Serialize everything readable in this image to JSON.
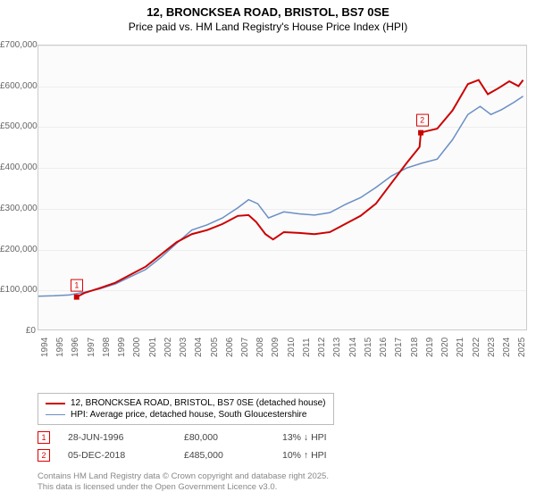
{
  "title_line1": "12, BRONCKSEA ROAD, BRISTOL, BS7 0SE",
  "title_line2": "Price paid vs. HM Land Registry's House Price Index (HPI)",
  "chart": {
    "type": "line",
    "background_color": "#fbfbfb",
    "grid_color": "#eeeeee",
    "border_color": "#cccccc",
    "x": {
      "min": 1994,
      "max": 2025.8,
      "tick_step": 1,
      "labels": [
        "1994",
        "1995",
        "1996",
        "1997",
        "1998",
        "1999",
        "2000",
        "2001",
        "2002",
        "2003",
        "2004",
        "2005",
        "2006",
        "2007",
        "2008",
        "2009",
        "2010",
        "2011",
        "2012",
        "2013",
        "2014",
        "2015",
        "2016",
        "2017",
        "2018",
        "2019",
        "2020",
        "2021",
        "2022",
        "2023",
        "2024",
        "2025"
      ],
      "label_fontsize": 10,
      "label_color": "#666666"
    },
    "y": {
      "min": 0,
      "max": 700000,
      "tick_step": 100000,
      "labels": [
        "£0",
        "£100,000",
        "£200,000",
        "£300,000",
        "£400,000",
        "£500,000",
        "£600,000",
        "£700,000"
      ],
      "label_fontsize": 10,
      "label_color": "#666666"
    },
    "series": [
      {
        "name": "price_paid",
        "label": "12, BRONCKSEA ROAD, BRISTOL, BS7 0SE (detached house)",
        "color": "#cc0000",
        "line_width": 2,
        "points": [
          [
            1996.49,
            80000
          ],
          [
            1997,
            90000
          ],
          [
            1998,
            102000
          ],
          [
            1999,
            115000
          ],
          [
            2000,
            135000
          ],
          [
            2001,
            155000
          ],
          [
            2002,
            185000
          ],
          [
            2003,
            215000
          ],
          [
            2004,
            235000
          ],
          [
            2005,
            245000
          ],
          [
            2006,
            260000
          ],
          [
            2007,
            280000
          ],
          [
            2007.7,
            282000
          ],
          [
            2008.2,
            265000
          ],
          [
            2008.8,
            235000
          ],
          [
            2009.3,
            222000
          ],
          [
            2010,
            240000
          ],
          [
            2011,
            238000
          ],
          [
            2012,
            235000
          ],
          [
            2013,
            240000
          ],
          [
            2014,
            260000
          ],
          [
            2015,
            280000
          ],
          [
            2016,
            310000
          ],
          [
            2017,
            360000
          ],
          [
            2018,
            410000
          ],
          [
            2018.85,
            450000
          ],
          [
            2018.93,
            485000
          ],
          [
            2019.2,
            488000
          ],
          [
            2020,
            495000
          ],
          [
            2021,
            540000
          ],
          [
            2022,
            605000
          ],
          [
            2022.7,
            615000
          ],
          [
            2023.3,
            580000
          ],
          [
            2024,
            595000
          ],
          [
            2024.7,
            612000
          ],
          [
            2025.3,
            600000
          ],
          [
            2025.6,
            615000
          ]
        ]
      },
      {
        "name": "hpi",
        "label": "HPI: Average price, detached house, South Gloucestershire",
        "color": "#6a8fc4",
        "line_width": 1.5,
        "points": [
          [
            1994,
            82000
          ],
          [
            1995,
            83000
          ],
          [
            1996,
            85000
          ],
          [
            1997,
            92000
          ],
          [
            1998,
            100000
          ],
          [
            1999,
            112000
          ],
          [
            2000,
            130000
          ],
          [
            2001,
            148000
          ],
          [
            2002,
            178000
          ],
          [
            2003,
            212000
          ],
          [
            2004,
            245000
          ],
          [
            2005,
            258000
          ],
          [
            2006,
            275000
          ],
          [
            2007,
            300000
          ],
          [
            2007.7,
            320000
          ],
          [
            2008.3,
            310000
          ],
          [
            2009,
            275000
          ],
          [
            2010,
            290000
          ],
          [
            2011,
            285000
          ],
          [
            2012,
            282000
          ],
          [
            2013,
            288000
          ],
          [
            2014,
            308000
          ],
          [
            2015,
            325000
          ],
          [
            2016,
            350000
          ],
          [
            2017,
            378000
          ],
          [
            2018,
            398000
          ],
          [
            2019,
            410000
          ],
          [
            2020,
            420000
          ],
          [
            2021,
            468000
          ],
          [
            2022,
            530000
          ],
          [
            2022.8,
            550000
          ],
          [
            2023.5,
            530000
          ],
          [
            2024.2,
            542000
          ],
          [
            2025,
            560000
          ],
          [
            2025.6,
            575000
          ]
        ]
      }
    ],
    "markers": [
      {
        "id": "1",
        "x": 1996.49,
        "y": 80000
      },
      {
        "id": "2",
        "x": 2018.93,
        "y": 485000
      }
    ]
  },
  "legend": {
    "items": [
      {
        "color": "#cc0000",
        "width": 2,
        "label": "12, BRONCKSEA ROAD, BRISTOL, BS7 0SE (detached house)"
      },
      {
        "color": "#6a8fc4",
        "width": 1.5,
        "label": "HPI: Average price, detached house, South Gloucestershire"
      }
    ]
  },
  "transactions": [
    {
      "id": "1",
      "date": "28-JUN-1996",
      "price": "£80,000",
      "delta": "13% ↓ HPI"
    },
    {
      "id": "2",
      "date": "05-DEC-2018",
      "price": "£485,000",
      "delta": "10% ↑ HPI"
    }
  ],
  "credit_line1": "Contains HM Land Registry data © Crown copyright and database right 2025.",
  "credit_line2": "This data is licensed under the Open Government Licence v3.0."
}
